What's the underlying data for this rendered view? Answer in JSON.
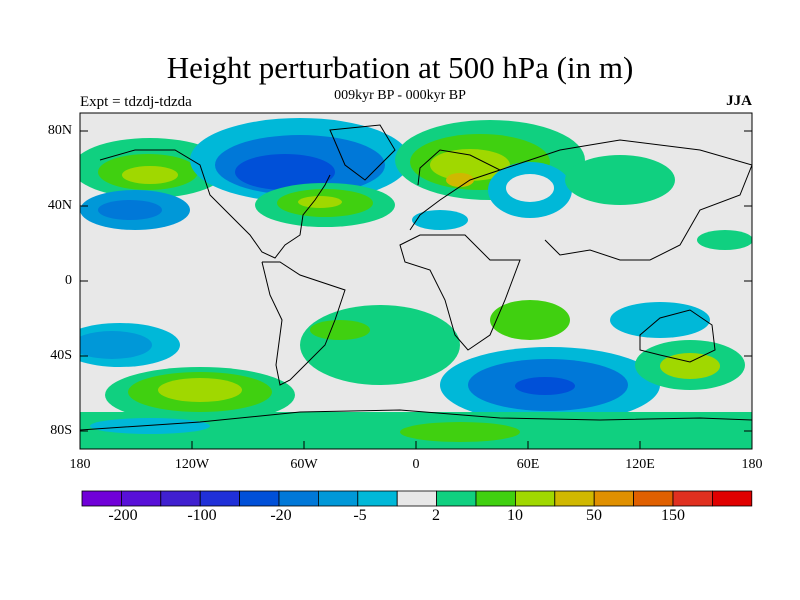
{
  "title": "Height perturbation at 500 hPa (in m)",
  "subtitle": "009kyr BP - 000kyr BP",
  "left_label": "Expt = tdzdj-tdzda",
  "right_label": "JJA",
  "lat_axis": {
    "ticks": [
      "80N",
      "40N",
      "0",
      "40S",
      "80S"
    ],
    "values": [
      80,
      40,
      0,
      -40,
      -80
    ]
  },
  "lon_axis": {
    "ticks": [
      "180",
      "120W",
      "60W",
      "0",
      "60E",
      "120E",
      "180"
    ],
    "values": [
      -180,
      -120,
      -60,
      0,
      60,
      120,
      180
    ]
  },
  "colors": {
    "zero_band": "#e8e8e8",
    "neg_light": "#00b4d8",
    "neg_mid": "#0096d8",
    "neg_strong": "#0070d8",
    "neg_deep": "#0040d8",
    "pos_light": "#10d080",
    "pos_mid": "#40d010",
    "pos_strong": "#a0d800",
    "pos_deep": "#d0b800"
  },
  "colorbar": {
    "colors": [
      "#7000d8",
      "#5810d8",
      "#4020d0",
      "#2030d8",
      "#0050d8",
      "#0078d8",
      "#0098d8",
      "#00b8d8",
      "#e8e8e8",
      "#10d080",
      "#40d010",
      "#a0d800",
      "#d0b800",
      "#e09000",
      "#e06000",
      "#e03020",
      "#e00000"
    ],
    "labels": [
      "-200",
      "-100",
      "-20",
      "-5",
      "2",
      "10",
      "50",
      "150"
    ]
  }
}
